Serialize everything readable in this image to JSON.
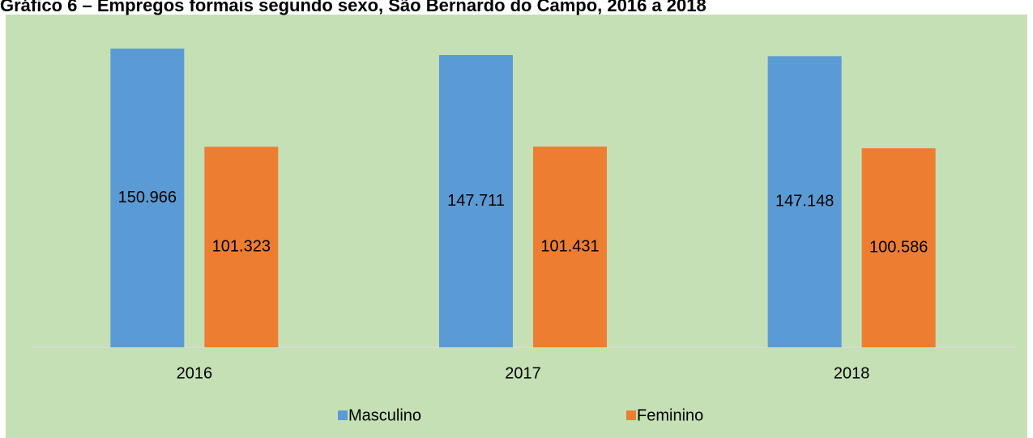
{
  "chart_data": {
    "type": "bar",
    "title": "Gráfico 6 – Empregos formais segundo sexo, São Bernardo do Campo, 2016 a 2018",
    "categories": [
      "2016",
      "2017",
      "2018"
    ],
    "series": [
      {
        "name": "Masculino",
        "color": "#5b9bd5",
        "values": [
          150966,
          147711,
          147148
        ],
        "value_labels": [
          "150.966",
          "147.711",
          "147.148"
        ]
      },
      {
        "name": "Feminino",
        "color": "#ed7d31",
        "values": [
          101323,
          101431,
          100586
        ],
        "value_labels": [
          "101.323",
          "101.431",
          "100.586"
        ]
      }
    ],
    "legend": "bottom"
  }
}
